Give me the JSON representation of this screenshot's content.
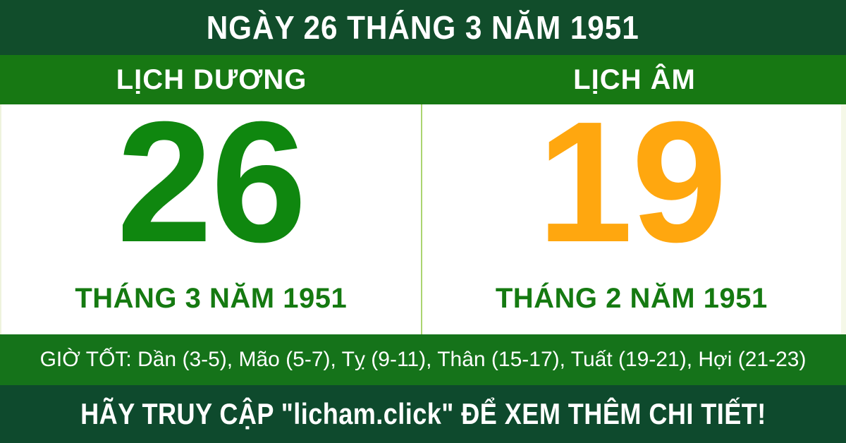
{
  "top_bar": {
    "title": "NGÀY 26 THÁNG 3 NĂM 1951"
  },
  "calendar": {
    "solar": {
      "header": "LỊCH DƯƠNG",
      "day": "26",
      "month_year": "THÁNG 3 NĂM 1951"
    },
    "lunar": {
      "header": "LỊCH ÂM",
      "day": "19",
      "month_year": "THÁNG 2 NĂM 1951"
    }
  },
  "good_hours": {
    "text": "GIỜ TỐT: Dần (3-5), Mão (5-7), Tỵ (9-11), Thân (15-17), Tuất (19-21), Hợi (21-23)"
  },
  "footer": {
    "message": "HÃY TRUY CẬP \"licham.click\" ĐỂ XEM THÊM CHI TIẾT!"
  },
  "colors": {
    "top_bar_green": "#114d2b",
    "header_green": "#177813",
    "hours_green": "#15731a",
    "footer_green": "#0e4a2d",
    "solar_day_green": "#0f870f",
    "lunar_day_orange": "#ffa70f",
    "month_label_green": "#157a11",
    "divider_light_green": "#abd470",
    "text_white": "#ffffff"
  }
}
